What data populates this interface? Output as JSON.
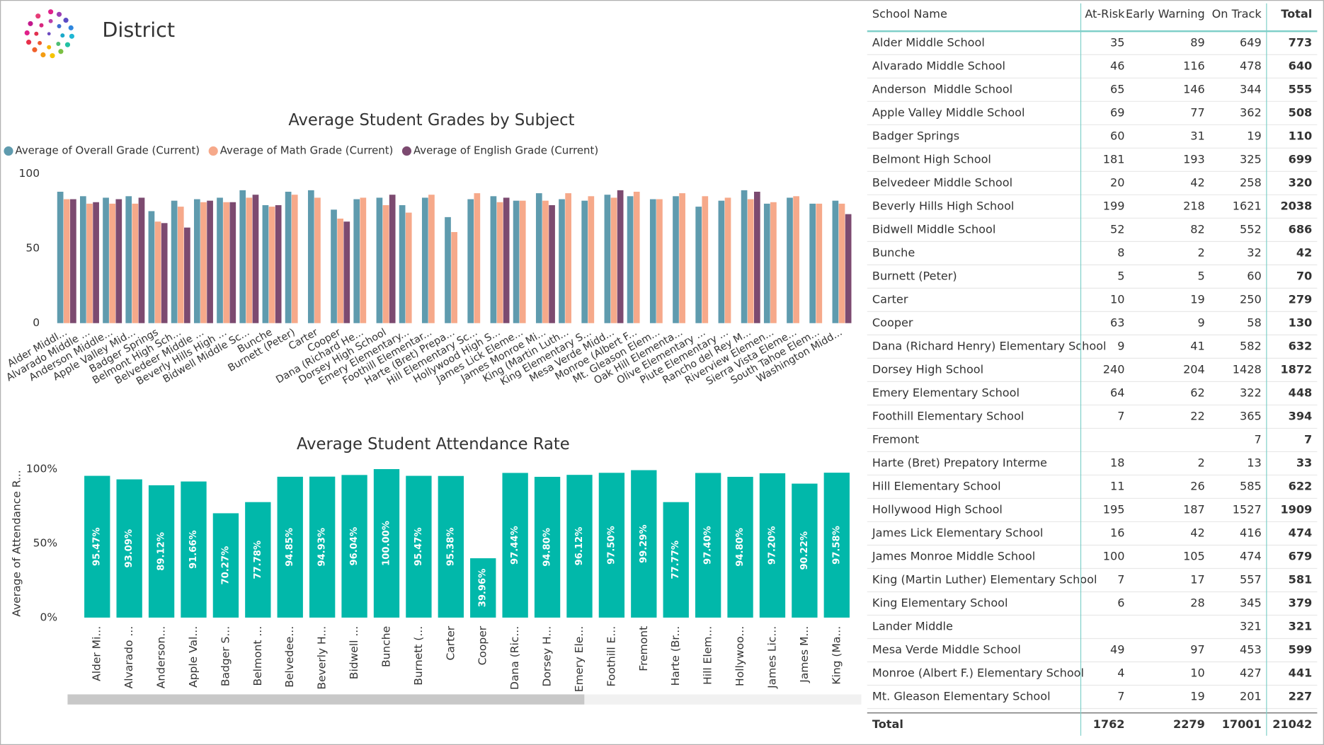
{
  "header": {
    "title": "District"
  },
  "chart_data": [
    {
      "type": "bar",
      "title": "Average Student Grades by Subject",
      "legend_position": "top-left",
      "grid": false,
      "categories": [
        "Alder Middl...",
        "Alvarado Middle ...",
        "Anderson Middle...",
        "Apple Valley Mid...",
        "Badger Springs",
        "Belmont High Sch...",
        "Belvedeer Middle ...",
        "Beverly Hills High ...",
        "Bidwell Middle Sc...",
        "Bunche",
        "Burnett (Peter)",
        "Carter",
        "Cooper",
        "Dana (Richard He...",
        "Dorsey High School",
        "Emery Elementary...",
        "Foothill Elementar...",
        "Harte (Bret) Prepa...",
        "Hill Elementary Sc...",
        "Hollywood High S...",
        "James Lick Eleme...",
        "James Monroe Mi...",
        "King (Martin Luth...",
        "King Elementary S...",
        "Mesa Verde Midd...",
        "Monroe (Albert F...",
        "Mt. Gleason Elem...",
        "Oak Hill Elementa...",
        "Olive Elementary ...",
        "Piute Elementary ...",
        "Rancho del Rey M...",
        "Riverview Elemen...",
        "Sierra Vista Eleme...",
        "South Tahoe Elem...",
        "Washington Midd..."
      ],
      "series": [
        {
          "name": "Average of Overall Grade (Current)",
          "color": "#5f9bae",
          "values": [
            88,
            85,
            84,
            85,
            75,
            82,
            83,
            84,
            89,
            79,
            88,
            89,
            76,
            83,
            84,
            79,
            84,
            71,
            83,
            85,
            82,
            87,
            83,
            82,
            86,
            85,
            83,
            85,
            78,
            82,
            89,
            80,
            84,
            80,
            82
          ]
        },
        {
          "name": "Average of Math Grade (Current)",
          "color": "#f6a98a",
          "values": [
            83,
            80,
            80,
            80,
            68,
            78,
            81,
            81,
            84,
            78,
            86,
            84,
            70,
            84,
            79,
            74,
            86,
            61,
            87,
            81,
            82,
            82,
            87,
            85,
            84,
            88,
            83,
            87,
            85,
            84,
            83,
            81,
            85,
            80,
            80
          ]
        },
        {
          "name": "Average of English Grade (Current)",
          "color": "#7c4a70",
          "values": [
            83,
            81,
            83,
            84,
            67,
            64,
            82,
            81,
            86,
            79,
            null,
            null,
            68,
            null,
            86,
            null,
            null,
            null,
            null,
            84,
            null,
            79,
            null,
            null,
            89,
            null,
            null,
            null,
            null,
            null,
            88,
            null,
            null,
            null,
            73
          ]
        }
      ],
      "ylim": [
        0,
        100
      ],
      "yticks": [
        0,
        50,
        100
      ]
    },
    {
      "type": "bar",
      "title": "Average Student Attendance Rate",
      "y_label": "Average of Attendance R...",
      "color": "#01b8aa",
      "categories": [
        "Alder Mi...",
        "Alvarado ...",
        "Anderson...",
        "Apple Val...",
        "Badger S...",
        "Belmont ...",
        "Belvedee...",
        "Beverly H...",
        "Bidwell ...",
        "Bunche",
        "Burnett (...",
        "Carter",
        "Cooper",
        "Dana (Ric...",
        "Dorsey H...",
        "Emery Ele...",
        "Foothill E...",
        "Fremont",
        "Harte (Br...",
        "Hill Elem...",
        "Hollywoo...",
        "James Lic...",
        "James M...",
        "King (Ma..."
      ],
      "values": [
        95.47,
        93.09,
        89.12,
        91.66,
        70.27,
        77.78,
        94.85,
        94.93,
        96.04,
        100,
        95.47,
        95.38,
        39.96,
        97.44,
        94.8,
        96.12,
        97.5,
        99.29,
        77.77,
        97.4,
        94.8,
        97.2,
        90.22,
        97.58
      ],
      "value_labels": [
        "95.47%",
        "93.09%",
        "89.12%",
        "91.66%",
        "70.27%",
        "77.78%",
        "94.85%",
        "94.93%",
        "96.04%",
        "100.00%",
        "95.47%",
        "95.38%",
        "39.96%",
        "97.44%",
        "94.80%",
        "96.12%",
        "97.50%",
        "99.29%",
        "77.77%",
        "97.40%",
        "94.80%",
        "97.20%",
        "90.22%",
        "97.58%"
      ],
      "ylim": [
        0,
        100
      ],
      "yticks": [
        {
          "value": 0,
          "label": "0%"
        },
        {
          "value": 50,
          "label": "50%"
        },
        {
          "value": 100,
          "label": "100%"
        }
      ]
    }
  ],
  "table": {
    "columns": [
      "School Name",
      "At-Risk",
      "Early Warning",
      "On Track",
      "Total"
    ],
    "rows": [
      [
        "Alder Middle School",
        35,
        89,
        649,
        773
      ],
      [
        "Alvarado Middle School",
        46,
        116,
        478,
        640
      ],
      [
        "Anderson  Middle School",
        65,
        146,
        344,
        555
      ],
      [
        "Apple Valley Middle School",
        69,
        77,
        362,
        508
      ],
      [
        "Badger Springs",
        60,
        31,
        19,
        110
      ],
      [
        "Belmont High School",
        181,
        193,
        325,
        699
      ],
      [
        "Belvedeer Middle School",
        20,
        42,
        258,
        320
      ],
      [
        "Beverly Hills High School",
        199,
        218,
        1621,
        2038
      ],
      [
        "Bidwell Middle School",
        52,
        82,
        552,
        686
      ],
      [
        "Bunche",
        8,
        2,
        32,
        42
      ],
      [
        "Burnett (Peter)",
        5,
        5,
        60,
        70
      ],
      [
        "Carter",
        10,
        19,
        250,
        279
      ],
      [
        "Cooper",
        63,
        9,
        58,
        130
      ],
      [
        "Dana (Richard Henry) Elementary School",
        9,
        41,
        582,
        632
      ],
      [
        "Dorsey High School",
        240,
        204,
        1428,
        1872
      ],
      [
        "Emery Elementary School",
        64,
        62,
        322,
        448
      ],
      [
        "Foothill Elementary School",
        7,
        22,
        365,
        394
      ],
      [
        "Fremont",
        null,
        null,
        7,
        7
      ],
      [
        "Harte (Bret) Prepatory Interme",
        18,
        2,
        13,
        33
      ],
      [
        "Hill Elementary School",
        11,
        26,
        585,
        622
      ],
      [
        "Hollywood High School",
        195,
        187,
        1527,
        1909
      ],
      [
        "James Lick Elementary School",
        16,
        42,
        416,
        474
      ],
      [
        "James Monroe Middle School",
        100,
        105,
        474,
        679
      ],
      [
        "King (Martin Luther) Elementary School",
        7,
        17,
        557,
        581
      ],
      [
        "King Elementary School",
        6,
        28,
        345,
        379
      ],
      [
        "Lander Middle",
        null,
        null,
        321,
        321
      ],
      [
        "Mesa Verde Middle School",
        49,
        97,
        453,
        599
      ],
      [
        "Monroe (Albert F.) Elementary School",
        4,
        10,
        427,
        441
      ],
      [
        "Mt. Gleason Elementary School",
        7,
        19,
        201,
        227
      ]
    ],
    "total": [
      "Total",
      1762,
      2279,
      17001,
      21042
    ]
  }
}
